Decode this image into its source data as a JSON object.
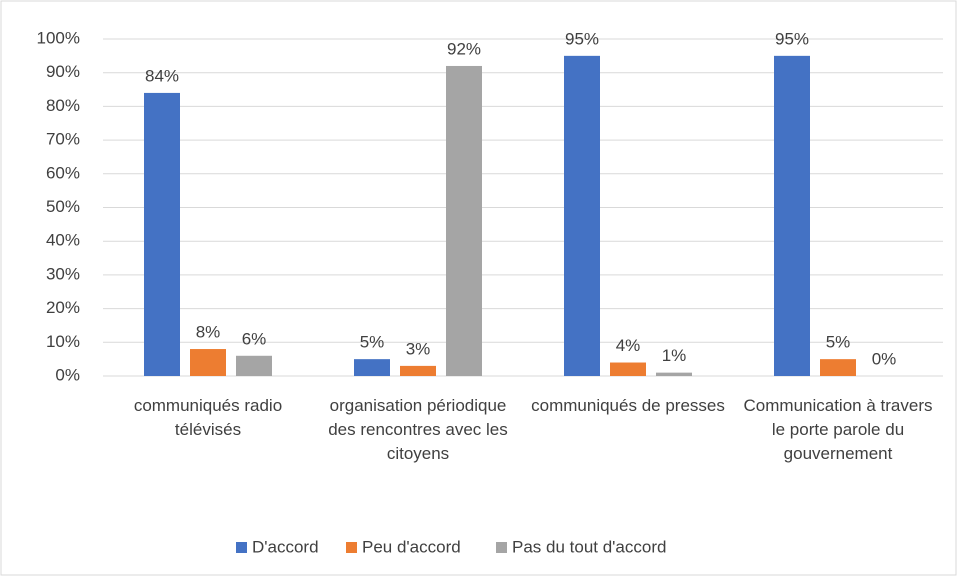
{
  "chart_data": {
    "type": "bar",
    "categories": [
      "communiqués radio télévisés",
      "organisation périodique des rencontres avec les citoyens",
      "communiqués de presses",
      "Communication à travers le porte parole du gouvernement"
    ],
    "series": [
      {
        "name": "D'accord",
        "color": "#4472c4",
        "values": [
          84,
          5,
          95,
          95
        ],
        "value_labels": [
          "84%",
          "5%",
          "95%",
          "95%"
        ]
      },
      {
        "name": "Peu d'accord",
        "color": "#ed7d31",
        "values": [
          8,
          3,
          4,
          5
        ],
        "value_labels": [
          "8%",
          "3%",
          "4%",
          "5%"
        ]
      },
      {
        "name": "Pas du tout d'accord",
        "color": "#a5a5a5",
        "values": [
          6,
          92,
          1,
          0
        ],
        "value_labels": [
          "6%",
          "92%",
          "1%",
          "0%"
        ]
      }
    ],
    "ylim": [
      0,
      100
    ],
    "yticks": [
      {
        "value": 0,
        "label": "0%"
      },
      {
        "value": 10,
        "label": "10%"
      },
      {
        "value": 20,
        "label": "20%"
      },
      {
        "value": 30,
        "label": "30%"
      },
      {
        "value": 40,
        "label": "40%"
      },
      {
        "value": 50,
        "label": "50%"
      },
      {
        "value": 60,
        "label": "60%"
      },
      {
        "value": 70,
        "label": "70%"
      },
      {
        "value": 80,
        "label": "80%"
      },
      {
        "value": 90,
        "label": "90%"
      },
      {
        "value": 100,
        "label": "100%"
      }
    ],
    "grid": true,
    "legend": "bottom"
  }
}
